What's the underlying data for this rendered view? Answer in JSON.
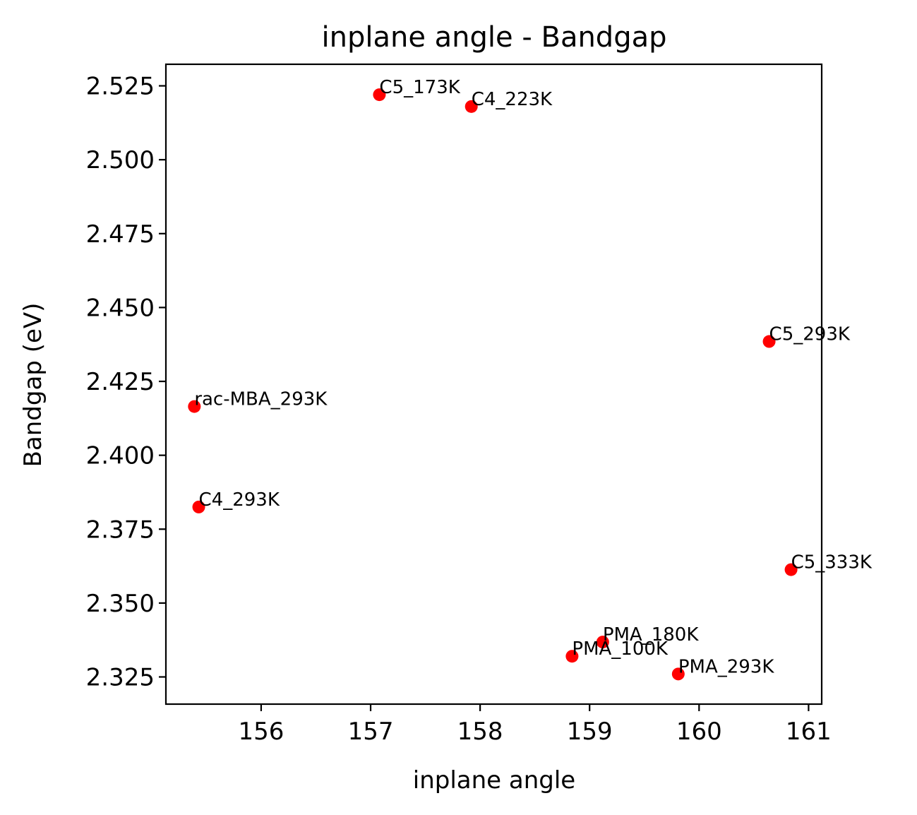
{
  "chart_data": {
    "type": "scatter",
    "title": "inplane angle - Bandgap",
    "xlabel": "inplane angle",
    "ylabel": "Bandgap (eV)",
    "xlim": [
      155.13,
      161.12
    ],
    "ylim": [
      2.3158,
      2.5323
    ],
    "xticks": [
      156,
      157,
      158,
      159,
      160,
      161
    ],
    "xtick_labels": [
      "156",
      "157",
      "158",
      "159",
      "160",
      "161"
    ],
    "yticks": [
      2.325,
      2.35,
      2.375,
      2.4,
      2.425,
      2.45,
      2.475,
      2.5,
      2.525
    ],
    "ytick_labels": [
      "2.325",
      "2.350",
      "2.375",
      "2.400",
      "2.425",
      "2.450",
      "2.475",
      "2.500",
      "2.525"
    ],
    "grid": false,
    "legend": false,
    "marker_color": "#ff0000",
    "points": [
      {
        "label": "C5_173K",
        "x": 157.08,
        "y": 2.522
      },
      {
        "label": "C4_223K",
        "x": 157.92,
        "y": 2.518
      },
      {
        "label": "C5_293K",
        "x": 160.64,
        "y": 2.4385
      },
      {
        "label": "rac-MBA_293K",
        "x": 155.39,
        "y": 2.4165
      },
      {
        "label": "C4_293K",
        "x": 155.43,
        "y": 2.3825
      },
      {
        "label": "C5_333K",
        "x": 160.84,
        "y": 2.3613
      },
      {
        "label": "PMA_180K",
        "x": 159.12,
        "y": 2.3368
      },
      {
        "label": "PMA_100K",
        "x": 158.84,
        "y": 2.332
      },
      {
        "label": "PMA_293K",
        "x": 159.81,
        "y": 2.326
      }
    ]
  }
}
